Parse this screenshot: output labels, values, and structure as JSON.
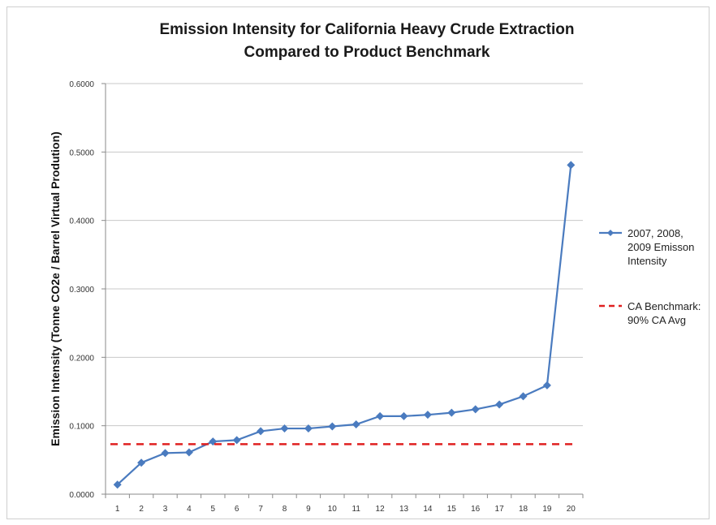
{
  "chart_data": {
    "type": "line",
    "title_lines": [
      "Emission Intensity for California Heavy Crude Extraction",
      "Compared to Product Benchmark"
    ],
    "xlabel": "",
    "ylabel": "Emission Intensity (Tonne CO2e /  Barrel Virtual Prodution)",
    "ylim": [
      0,
      0.6
    ],
    "y_ticks": [
      "0.0000",
      "0.1000",
      "0.2000",
      "0.3000",
      "0.4000",
      "0.5000",
      "0.6000"
    ],
    "x": [
      1,
      2,
      3,
      4,
      5,
      6,
      7,
      8,
      9,
      10,
      11,
      12,
      13,
      14,
      15,
      16,
      17,
      18,
      19,
      20
    ],
    "grid": "horizontal",
    "legend_position": "right",
    "series": [
      {
        "legend_lines": [
          "2007, 2008,",
          "2009 Emisson",
          "Intensity"
        ],
        "color": "#4a7bbf",
        "marker": "diamond",
        "line_style": "solid",
        "values": [
          0.014,
          0.046,
          0.06,
          0.061,
          0.077,
          0.079,
          0.092,
          0.096,
          0.096,
          0.099,
          0.102,
          0.114,
          0.114,
          0.116,
          0.119,
          0.124,
          0.131,
          0.143,
          0.159,
          0.481
        ]
      },
      {
        "legend_lines": [
          "CA Benchmark:",
          "90% CA Avg"
        ],
        "color": "#e02020",
        "marker": "none",
        "line_style": "dashed",
        "values": [
          0.073,
          0.073,
          0.073,
          0.073,
          0.073,
          0.073,
          0.073,
          0.073,
          0.073,
          0.073,
          0.073,
          0.073,
          0.073,
          0.073,
          0.073,
          0.073,
          0.073,
          0.073,
          0.073,
          0.073
        ]
      }
    ],
    "gridline_color": "#c8c8c8"
  }
}
